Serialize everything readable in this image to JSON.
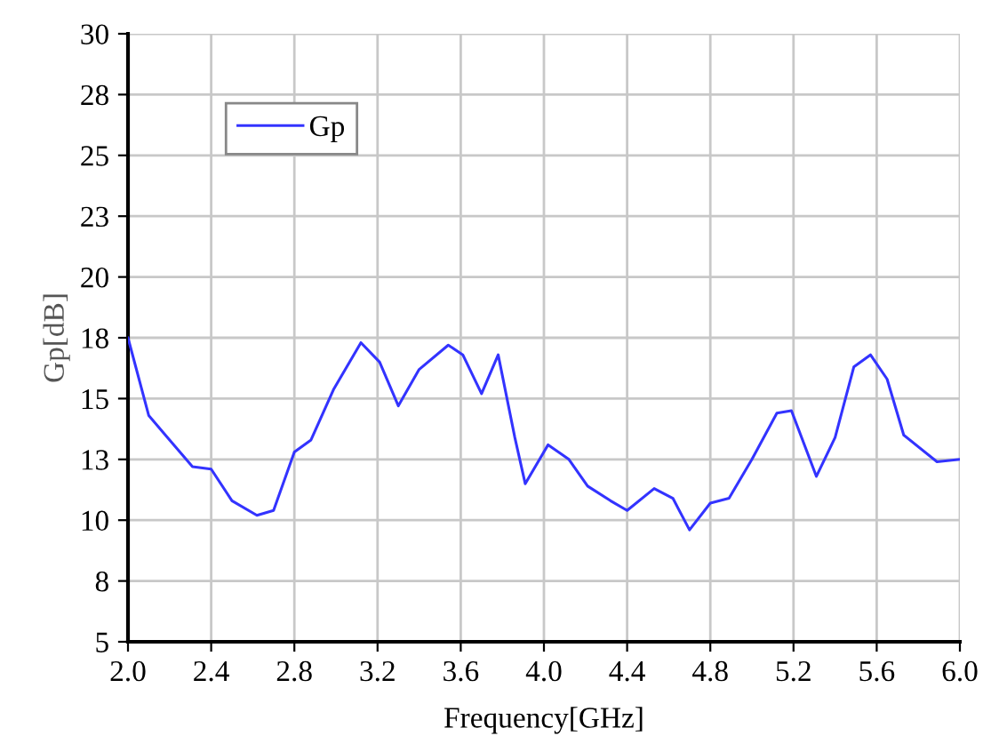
{
  "chart_data": {
    "type": "line",
    "xlabel": "Frequency[GHz]",
    "ylabel": "Gp[dB]",
    "xlim": [
      2.0,
      6.0
    ],
    "ylim": [
      5,
      30
    ],
    "xticks": [
      {
        "value": 2.0,
        "label": "2.0"
      },
      {
        "value": 2.4,
        "label": "2.4"
      },
      {
        "value": 2.8,
        "label": "2.8"
      },
      {
        "value": 3.2,
        "label": "3.2"
      },
      {
        "value": 3.6,
        "label": "3.6"
      },
      {
        "value": 4.0,
        "label": "4.0"
      },
      {
        "value": 4.4,
        "label": "4.4"
      },
      {
        "value": 4.8,
        "label": "4.8"
      },
      {
        "value": 5.2,
        "label": "5.2"
      },
      {
        "value": 5.6,
        "label": "5.6"
      },
      {
        "value": 6.0,
        "label": "6.0"
      }
    ],
    "yticks": [
      5,
      {
        "value": 7.5,
        "label": "8"
      },
      10,
      {
        "value": 12.5,
        "label": "13"
      },
      15,
      {
        "value": 17.5,
        "label": "18"
      },
      20,
      {
        "value": 22.5,
        "label": "23"
      },
      25,
      {
        "value": 27.5,
        "label": "28"
      },
      30
    ],
    "grid": true,
    "legend": "top left",
    "marker": "none",
    "line_style": "solid",
    "series": [
      {
        "name": "Gp",
        "color": "#3333ff",
        "x": [
          2.0,
          2.1,
          2.18,
          2.31,
          2.4,
          2.5,
          2.62,
          2.7,
          2.8,
          2.88,
          2.99,
          3.12,
          3.21,
          3.3,
          3.4,
          3.54,
          3.61,
          3.7,
          3.78,
          3.86,
          3.91,
          4.02,
          4.12,
          4.21,
          4.32,
          4.4,
          4.53,
          4.62,
          4.7,
          4.8,
          4.89,
          5.0,
          5.12,
          5.19,
          5.31,
          5.4,
          5.49,
          5.57,
          5.65,
          5.73,
          5.89,
          6.0
        ],
        "values": [
          17.5,
          14.3,
          13.5,
          12.2,
          12.1,
          10.8,
          10.2,
          10.4,
          12.8,
          13.3,
          15.4,
          17.3,
          16.5,
          14.7,
          16.2,
          17.2,
          16.8,
          15.2,
          16.8,
          13.4,
          11.5,
          13.1,
          12.5,
          11.4,
          10.8,
          10.4,
          11.3,
          10.9,
          9.6,
          10.7,
          10.9,
          12.5,
          14.4,
          14.5,
          11.8,
          13.4,
          16.3,
          16.8,
          15.8,
          13.5,
          12.4,
          12.5
        ]
      }
    ]
  }
}
